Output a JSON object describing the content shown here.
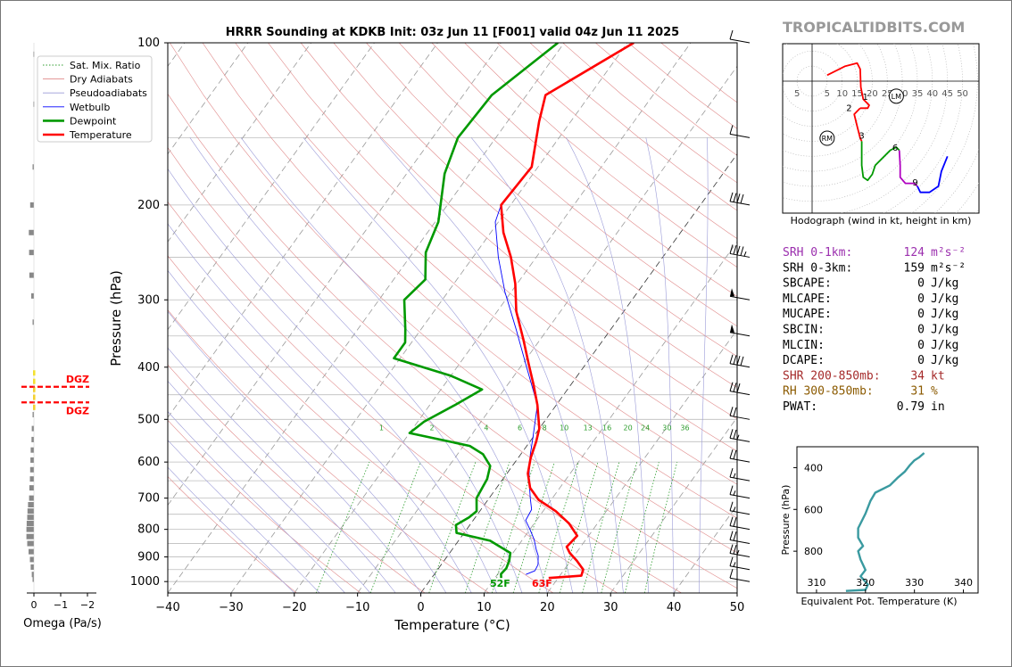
{
  "watermark": "TROPICALTIDBITS.COM",
  "title": "HRRR Sounding at KDKB Init: 03z Jun 11 [F001] valid 04z Jun 11 2025",
  "legend": [
    {
      "label": "Sat. Mix. Ratio",
      "color": "#2e9d2e",
      "style": "dotted"
    },
    {
      "label": "Dry Adiabats",
      "color": "#e08a8a",
      "style": "solid"
    },
    {
      "label": "Pseudoadiabats",
      "color": "#9b9bd8",
      "style": "solid"
    },
    {
      "label": "Wetbulb",
      "color": "#0000ff",
      "style": "solid"
    },
    {
      "label": "Dewpoint",
      "color": "#009900",
      "style": "thick"
    },
    {
      "label": "Temperature",
      "color": "#ff0000",
      "style": "thick"
    }
  ],
  "mixing_ratio_labels": [
    "1",
    "2",
    "4",
    "6",
    "8",
    "10",
    "13",
    "16",
    "20",
    "24",
    "30",
    "36"
  ],
  "colors": {
    "temperature": "#ff0000",
    "dewpoint": "#009900",
    "wetbulb": "#0000ff",
    "srh1": "#9b2fae",
    "shear": "#a52a2a",
    "rh": "#8b5a00",
    "theta": "#3a9aa0",
    "dgz": "#ff0000"
  },
  "surface_labels": {
    "dewpoint": "52F",
    "temperature": "63F"
  },
  "omega": {
    "title": "Omega (Pa/s)",
    "ticks": [
      "0",
      "−1",
      "−2"
    ],
    "dgz_label": "DGZ"
  },
  "hodograph": {
    "caption": "Hodograph (wind in kt, height in km)",
    "rings": [
      "5",
      "5",
      "10",
      "15",
      "20",
      "25",
      "30",
      "35",
      "40",
      "45",
      "50"
    ],
    "height_labels": [
      "1",
      "2",
      "3",
      "6",
      "9"
    ],
    "markers": {
      "lm": "LM",
      "rm": "RM"
    }
  },
  "params": [
    {
      "name": "SRH 0-1km:",
      "value": "124",
      "unit": "m²s⁻²",
      "color": "#9b2fae"
    },
    {
      "name": "SRH 0-3km:",
      "value": "159",
      "unit": "m²s⁻²",
      "color": "#000000"
    },
    {
      "name": "SBCAPE:",
      "value": "0",
      "unit": "J/kg",
      "color": "#000000"
    },
    {
      "name": "MLCAPE:",
      "value": "0",
      "unit": "J/kg",
      "color": "#000000"
    },
    {
      "name": "MUCAPE:",
      "value": "0",
      "unit": "J/kg",
      "color": "#000000"
    },
    {
      "name": "SBCIN:",
      "value": "0",
      "unit": "J/kg",
      "color": "#000000"
    },
    {
      "name": "MLCIN:",
      "value": "0",
      "unit": "J/kg",
      "color": "#000000"
    },
    {
      "name": "DCAPE:",
      "value": "0",
      "unit": "J/kg",
      "color": "#000000"
    },
    {
      "name": "SHR 200-850mb:",
      "value": "34",
      "unit": "kt",
      "color": "#a52a2a"
    },
    {
      "name": "RH 300-850mb:",
      "value": "31",
      "unit": "%",
      "color": "#8b5a00"
    },
    {
      "name": "PWAT:",
      "value": "0.79",
      "unit": "in",
      "color": "#000000"
    }
  ],
  "theta_panel": {
    "ylabel": "Pressure (hPa)",
    "xlabel": "Equivalent Pot. Temperature (K)",
    "xticks": [
      "310",
      "320",
      "330",
      "340"
    ],
    "yticks": [
      "400",
      "600",
      "800"
    ]
  },
  "chart_data": [
    {
      "type": "line",
      "title": "HRRR Sounding at KDKB Init: 03z Jun 11 [F001] valid 04z Jun 11 2025",
      "xlabel": "Temperature (°C)",
      "ylabel": "Pressure (hPa)",
      "xlim": [
        -40,
        50
      ],
      "ylim": [
        1050,
        100
      ],
      "yscale": "log",
      "skew": true,
      "xticks": [
        "−40",
        "−30",
        "−20",
        "−10",
        "0",
        "10",
        "20",
        "30",
        "40",
        "50"
      ],
      "yticks": [
        "100",
        "200",
        "300",
        "400",
        "500",
        "600",
        "700",
        "800",
        "900",
        "1000"
      ],
      "legend": "top-left",
      "series": [
        {
          "name": "Temperature",
          "points": [
            [
              18.5,
              985
            ],
            [
              23.4,
              975
            ],
            [
              23,
              950
            ],
            [
              21,
              915
            ],
            [
              19,
              885
            ],
            [
              17.8,
              862
            ],
            [
              18.2,
              822
            ],
            [
              15.5,
              780
            ],
            [
              12,
              740
            ],
            [
              8,
              705
            ],
            [
              5.3,
              670
            ],
            [
              3.3,
              630
            ],
            [
              2,
              590
            ],
            [
              1,
              550
            ],
            [
              0,
              520
            ],
            [
              -3,
              470
            ],
            [
              -6,
              430
            ],
            [
              -9,
              395
            ],
            [
              -12.7,
              355
            ],
            [
              -17,
              315
            ],
            [
              -20.3,
              280
            ],
            [
              -24,
              250
            ],
            [
              -28,
              225
            ],
            [
              -31.5,
              200
            ],
            [
              -31,
              170
            ],
            [
              -35,
              140
            ],
            [
              -37,
              125
            ],
            [
              -29,
              100
            ]
          ]
        },
        {
          "name": "Dewpoint",
          "points": [
            [
              11,
              985
            ],
            [
              10.5,
              968
            ],
            [
              10.7,
              945
            ],
            [
              10.3,
              915
            ],
            [
              9.6,
              885
            ],
            [
              5,
              840
            ],
            [
              -1.2,
              812
            ],
            [
              -2.2,
              785
            ],
            [
              -1,
              760
            ],
            [
              -0.5,
              740
            ],
            [
              -2,
              700
            ],
            [
              -2.5,
              645
            ],
            [
              -3.5,
              610
            ],
            [
              -6,
              580
            ],
            [
              -9,
              560
            ],
            [
              -20,
              530
            ],
            [
              -19,
              505
            ],
            [
              -16,
              470
            ],
            [
              -13.5,
              440
            ],
            [
              -20,
              415
            ],
            [
              -31,
              385
            ],
            [
              -31,
              360
            ],
            [
              -32.5,
              340
            ],
            [
              -36,
              300
            ],
            [
              -35,
              275
            ],
            [
              -38,
              245
            ],
            [
              -39.5,
              215
            ],
            [
              -44,
              175
            ],
            [
              -46,
              150
            ],
            [
              -45.5,
              125
            ],
            [
              -41,
              100
            ]
          ]
        },
        {
          "name": "Wetbulb",
          "points": [
            [
              14.5,
              970
            ],
            [
              15.5,
              955
            ],
            [
              15.3,
              930
            ],
            [
              14.3,
              895
            ],
            [
              13.2,
              870
            ],
            [
              11.8,
              835
            ],
            [
              10,
              800
            ],
            [
              8.3,
              770
            ],
            [
              8,
              735
            ],
            [
              6.5,
              700
            ],
            [
              5,
              665
            ],
            [
              3.5,
              630
            ],
            [
              1.5,
              580
            ],
            [
              0,
              540
            ],
            [
              -3,
              470
            ],
            [
              -9,
              400
            ],
            [
              -15,
              340
            ],
            [
              -21,
              290
            ],
            [
              -26,
              250
            ],
            [
              -30.5,
              215
            ],
            [
              -31.5,
              200
            ]
          ]
        }
      ]
    },
    {
      "type": "line",
      "title": "",
      "xlabel": "Equivalent Pot. Temperature (K)",
      "ylabel": "Pressure (hPa)",
      "xlim": [
        306,
        343
      ],
      "ylim": [
        1000,
        300
      ],
      "series": [
        {
          "name": "",
          "points": [
            [
              316,
              990
            ],
            [
              320,
              985
            ],
            [
              320.5,
              960
            ],
            [
              319,
              920
            ],
            [
              320,
              890
            ],
            [
              319,
              840
            ],
            [
              318.5,
              800
            ],
            [
              319.5,
              775
            ],
            [
              318.5,
              735
            ],
            [
              318.5,
              690
            ],
            [
              320,
              620
            ],
            [
              321,
              560
            ],
            [
              322,
              520
            ],
            [
              325,
              485
            ],
            [
              326.5,
              450
            ],
            [
              328,
              420
            ],
            [
              329,
              390
            ],
            [
              330,
              365
            ],
            [
              331,
              350
            ],
            [
              332,
              330
            ]
          ]
        }
      ]
    },
    {
      "type": "bar",
      "title": "",
      "xlabel": "Omega (Pa/s)",
      "xlim": [
        0.1,
        -2.3
      ],
      "bars": [
        [
          990,
          -0.05
        ],
        [
          970,
          -0.08
        ],
        [
          940,
          -0.12
        ],
        [
          910,
          -0.15
        ],
        [
          880,
          -0.2
        ],
        [
          850,
          -0.25
        ],
        [
          825,
          -0.28
        ],
        [
          800,
          -0.28
        ],
        [
          780,
          -0.27
        ],
        [
          760,
          -0.25
        ],
        [
          740,
          -0.24
        ],
        [
          720,
          -0.22
        ],
        [
          700,
          -0.18
        ],
        [
          670,
          -0.17
        ],
        [
          645,
          -0.15
        ],
        [
          620,
          -0.14
        ],
        [
          595,
          -0.13
        ],
        [
          570,
          -0.12
        ],
        [
          545,
          -0.09
        ],
        [
          520,
          -0.08
        ],
        [
          490,
          -0.05
        ],
        [
          330,
          -0.05
        ],
        [
          295,
          -0.1
        ],
        [
          270,
          -0.17
        ],
        [
          245,
          -0.18
        ],
        [
          225,
          -0.19
        ],
        [
          200,
          -0.14
        ],
        [
          170,
          -0.05
        ],
        [
          130,
          -0.02
        ],
        [
          105,
          -0.02
        ]
      ],
      "dgz": [
        [
          410,
          "#ffe600"
        ],
        [
          425,
          "#ffe600"
        ],
        [
          440,
          "#ffd200"
        ],
        [
          455,
          "#ffd200"
        ],
        [
          475,
          "#ffd200"
        ]
      ]
    },
    {
      "type": "line",
      "title": "Hodograph (wind in kt, height in km)",
      "xlim": [
        -10,
        56
      ],
      "ylim": [
        -45,
        15
      ],
      "series": [
        {
          "name": "0-1 km",
          "color": "#ff0000",
          "points": [
            [
              5,
              2
            ],
            [
              11,
              5
            ],
            [
              15,
              6
            ],
            [
              16,
              4
            ],
            [
              16.2,
              -2
            ],
            [
              17,
              -6
            ],
            [
              19,
              -8
            ],
            [
              18.5,
              -9
            ],
            [
              16,
              -9
            ]
          ]
        },
        {
          "name": "1-3 km",
          "color": "#ff0000",
          "points": [
            [
              16,
              -9
            ],
            [
              14,
              -11
            ],
            [
              15,
              -15
            ],
            [
              16,
              -19
            ],
            [
              16.5,
              -20
            ]
          ]
        },
        {
          "name": "3-6 km",
          "color": "#009900",
          "points": [
            [
              16.5,
              -20
            ],
            [
              16.5,
              -28
            ],
            [
              17,
              -32
            ],
            [
              18.5,
              -33
            ],
            [
              20,
              -31
            ],
            [
              21,
              -28
            ],
            [
              23,
              -26
            ],
            [
              26,
              -23
            ],
            [
              28,
              -22
            ],
            [
              29,
              -23
            ]
          ]
        },
        {
          "name": "6-9 km",
          "color": "#b000c0",
          "points": [
            [
              29,
              -23
            ],
            [
              29.3,
              -28
            ],
            [
              29.3,
              -32
            ],
            [
              31,
              -34
            ],
            [
              34,
              -34
            ],
            [
              35,
              -35
            ]
          ]
        },
        {
          "name": "9+ km",
          "color": "#0000ff",
          "points": [
            [
              35,
              -35
            ],
            [
              36,
              -37
            ],
            [
              39,
              -37
            ],
            [
              42,
              -35
            ],
            [
              43,
              -30
            ],
            [
              45,
              -25
            ]
          ]
        }
      ],
      "labels": [
        [
          "1",
          17.7,
          -5
        ],
        [
          "2",
          12.3,
          -8.7
        ],
        [
          "3",
          16.5,
          -18
        ],
        [
          "6",
          27.6,
          -22
        ],
        [
          "9",
          34.3,
          -33.5
        ]
      ],
      "lm": [
        28,
        -5
      ],
      "rm": [
        5,
        -19
      ]
    },
    {
      "type": "scatter",
      "title": "Wind barbs",
      "points": [
        [
          100,
          10
        ],
        [
          150,
          10
        ],
        [
          200,
          40
        ],
        [
          250,
          45
        ],
        [
          300,
          50
        ],
        [
          350,
          50
        ],
        [
          400,
          40
        ],
        [
          450,
          30
        ],
        [
          500,
          20
        ],
        [
          550,
          25
        ],
        [
          600,
          20
        ],
        [
          650,
          15
        ],
        [
          700,
          15
        ],
        [
          750,
          15
        ],
        [
          800,
          20
        ],
        [
          850,
          20
        ],
        [
          900,
          25
        ],
        [
          950,
          15
        ],
        [
          1000,
          10
        ]
      ]
    }
  ]
}
